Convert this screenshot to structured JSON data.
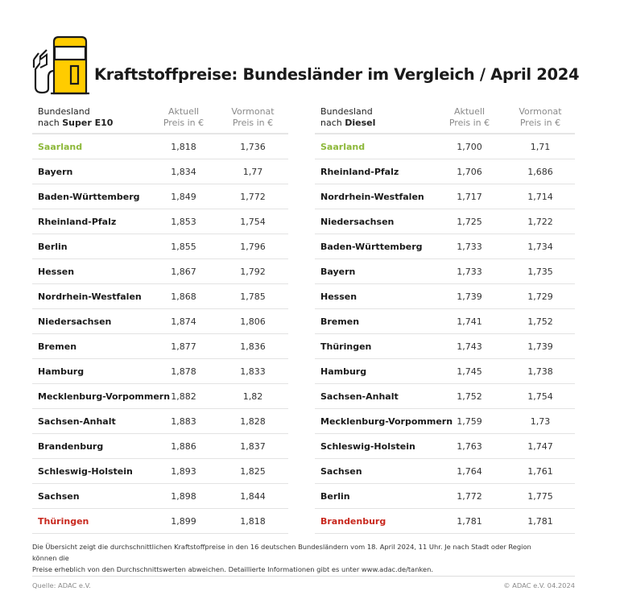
{
  "title": "Kraftstoffpreise: Bundesländer im Vergleich / April 2024",
  "icon": "fuel-pump-icon",
  "colors": {
    "accent": "#FFCC00",
    "cheapest": "#8DB83A",
    "most_expensive": "#C8281E"
  },
  "tables": [
    {
      "header": {
        "name_line1": "Bundesland",
        "name_prefix": "nach ",
        "name_bold": "Super E10",
        "aktuell_1": "Aktuell",
        "aktuell_2": "Preis in €",
        "vormonat_1": "Vormonat",
        "vormonat_2": "Preis in €"
      },
      "rows": [
        [
          "Saarland",
          "1,818",
          "1,736"
        ],
        [
          "Bayern",
          "1,834",
          "1,77"
        ],
        [
          "Baden-Württemberg",
          "1,849",
          "1,772"
        ],
        [
          "Rheinland-Pfalz",
          "1,853",
          "1,754"
        ],
        [
          "Berlin",
          "1,855",
          "1,796"
        ],
        [
          "Hessen",
          "1,867",
          "1,792"
        ],
        [
          "Nordrhein-Westfalen",
          "1,868",
          "1,785"
        ],
        [
          "Niedersachsen",
          "1,874",
          "1,806"
        ],
        [
          "Bremen",
          "1,877",
          "1,836"
        ],
        [
          "Hamburg",
          "1,878",
          "1,833"
        ],
        [
          "Mecklenburg-Vorpommern",
          "1,882",
          "1,82"
        ],
        [
          "Sachsen-Anhalt",
          "1,883",
          "1,828"
        ],
        [
          "Brandenburg",
          "1,886",
          "1,837"
        ],
        [
          "Schleswig-Holstein",
          "1,893",
          "1,825"
        ],
        [
          "Sachsen",
          "1,898",
          "1,844"
        ],
        [
          "Thüringen",
          "1,899",
          "1,818"
        ]
      ]
    },
    {
      "header": {
        "name_line1": "Bundesland",
        "name_prefix": "nach ",
        "name_bold": "Diesel",
        "aktuell_1": "Aktuell",
        "aktuell_2": "Preis in €",
        "vormonat_1": "Vormonat",
        "vormonat_2": "Preis in €"
      },
      "rows": [
        [
          "Saarland",
          "1,700",
          "1,71"
        ],
        [
          "Rheinland-Pfalz",
          "1,706",
          "1,686"
        ],
        [
          "Nordrhein-Westfalen",
          "1,717",
          "1,714"
        ],
        [
          "Niedersachsen",
          "1,725",
          "1,722"
        ],
        [
          "Baden-Württemberg",
          "1,733",
          "1,734"
        ],
        [
          "Bayern",
          "1,733",
          "1,735"
        ],
        [
          "Hessen",
          "1,739",
          "1,729"
        ],
        [
          "Bremen",
          "1,741",
          "1,752"
        ],
        [
          "Thüringen",
          "1,743",
          "1,739"
        ],
        [
          "Hamburg",
          "1,745",
          "1,738"
        ],
        [
          "Sachsen-Anhalt",
          "1,752",
          "1,754"
        ],
        [
          "Mecklenburg-Vorpommern",
          "1,759",
          "1,73"
        ],
        [
          "Schleswig-Holstein",
          "1,763",
          "1,747"
        ],
        [
          "Sachsen",
          "1,764",
          "1,761"
        ],
        [
          "Berlin",
          "1,772",
          "1,775"
        ],
        [
          "Brandenburg",
          "1,781",
          "1,781"
        ]
      ]
    }
  ],
  "note_line1": "Die Übersicht zeigt die durchschnittlichen Kraftstoffpreise in den 16 deutschen Bundesländern vom 18. April 2024, 11 Uhr. Je nach Stadt oder Region können die",
  "note_line2": "Preise erheblich von den Durchschnittswerten abweichen. Detaillierte Informationen gibt es unter www.adac.de/tanken.",
  "source": "Quelle: ADAC e.V.",
  "copyright": "© ADAC e.V. 04.2024"
}
